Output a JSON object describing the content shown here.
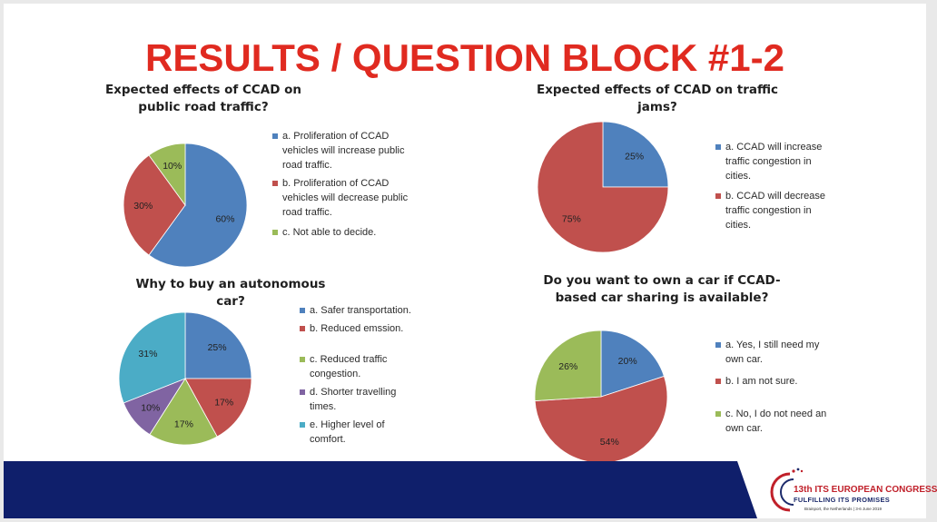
{
  "slide": {
    "title": "RESULTS / QUESTION BLOCK #1-2",
    "title_color": "#e02a20"
  },
  "footer": {
    "band_color": "#0f1f6b",
    "logo": {
      "title": "13th ITS EUROPEAN CONGRESS",
      "subtitle": "FULFILLING ITS PROMISES",
      "place": "Brainport, the Netherlands  |  3-6 June 2019"
    }
  },
  "chart_data": [
    {
      "type": "pie",
      "title": "Expected effects of CCAD on public road traffic?",
      "categories": [
        "a. Proliferation of CCAD vehicles will increase public road traffic.",
        "b. Proliferation of CCAD vehicles will decrease public road traffic.",
        "c. Not able to decide."
      ],
      "values": [
        60,
        30,
        10
      ],
      "labels": [
        "60%",
        "30%",
        "10%"
      ],
      "colors": [
        "#4f81bd",
        "#c0504d",
        "#9bbb59"
      ],
      "legend_position": "right"
    },
    {
      "type": "pie",
      "title": "Expected effects of CCAD on traffic jams?",
      "categories": [
        "a. CCAD will increase traffic congestion in cities.",
        "b. CCAD will decrease traffic congestion in cities."
      ],
      "values": [
        25,
        75
      ],
      "labels": [
        "25%",
        "75%"
      ],
      "colors": [
        "#4f81bd",
        "#c0504d"
      ],
      "legend_position": "right"
    },
    {
      "type": "pie",
      "title": "Why to buy an autonomous  car?",
      "categories": [
        "a. Safer transportation.",
        "b. Reduced emssion.",
        "c. Reduced traffic congestion.",
        "d. Shorter travelling times.",
        "e. Higher level of comfort."
      ],
      "values": [
        25,
        17,
        17,
        10,
        31
      ],
      "labels": [
        "25%",
        "17%",
        "17%",
        "10%",
        "31%"
      ],
      "colors": [
        "#4f81bd",
        "#c0504d",
        "#9bbb59",
        "#8064a2",
        "#4bacc6"
      ],
      "legend_position": "right"
    },
    {
      "type": "pie",
      "title": "Do you want to own a car if CCAD-based car sharing is available?",
      "categories": [
        "a. Yes, I still need my own car.",
        "b. I am not sure.",
        "c. No, I do not need an own car."
      ],
      "values": [
        20,
        54,
        26
      ],
      "labels": [
        "20%",
        "54%",
        "26%"
      ],
      "colors": [
        "#4f81bd",
        "#c0504d",
        "#9bbb59"
      ],
      "legend_position": "right"
    }
  ]
}
